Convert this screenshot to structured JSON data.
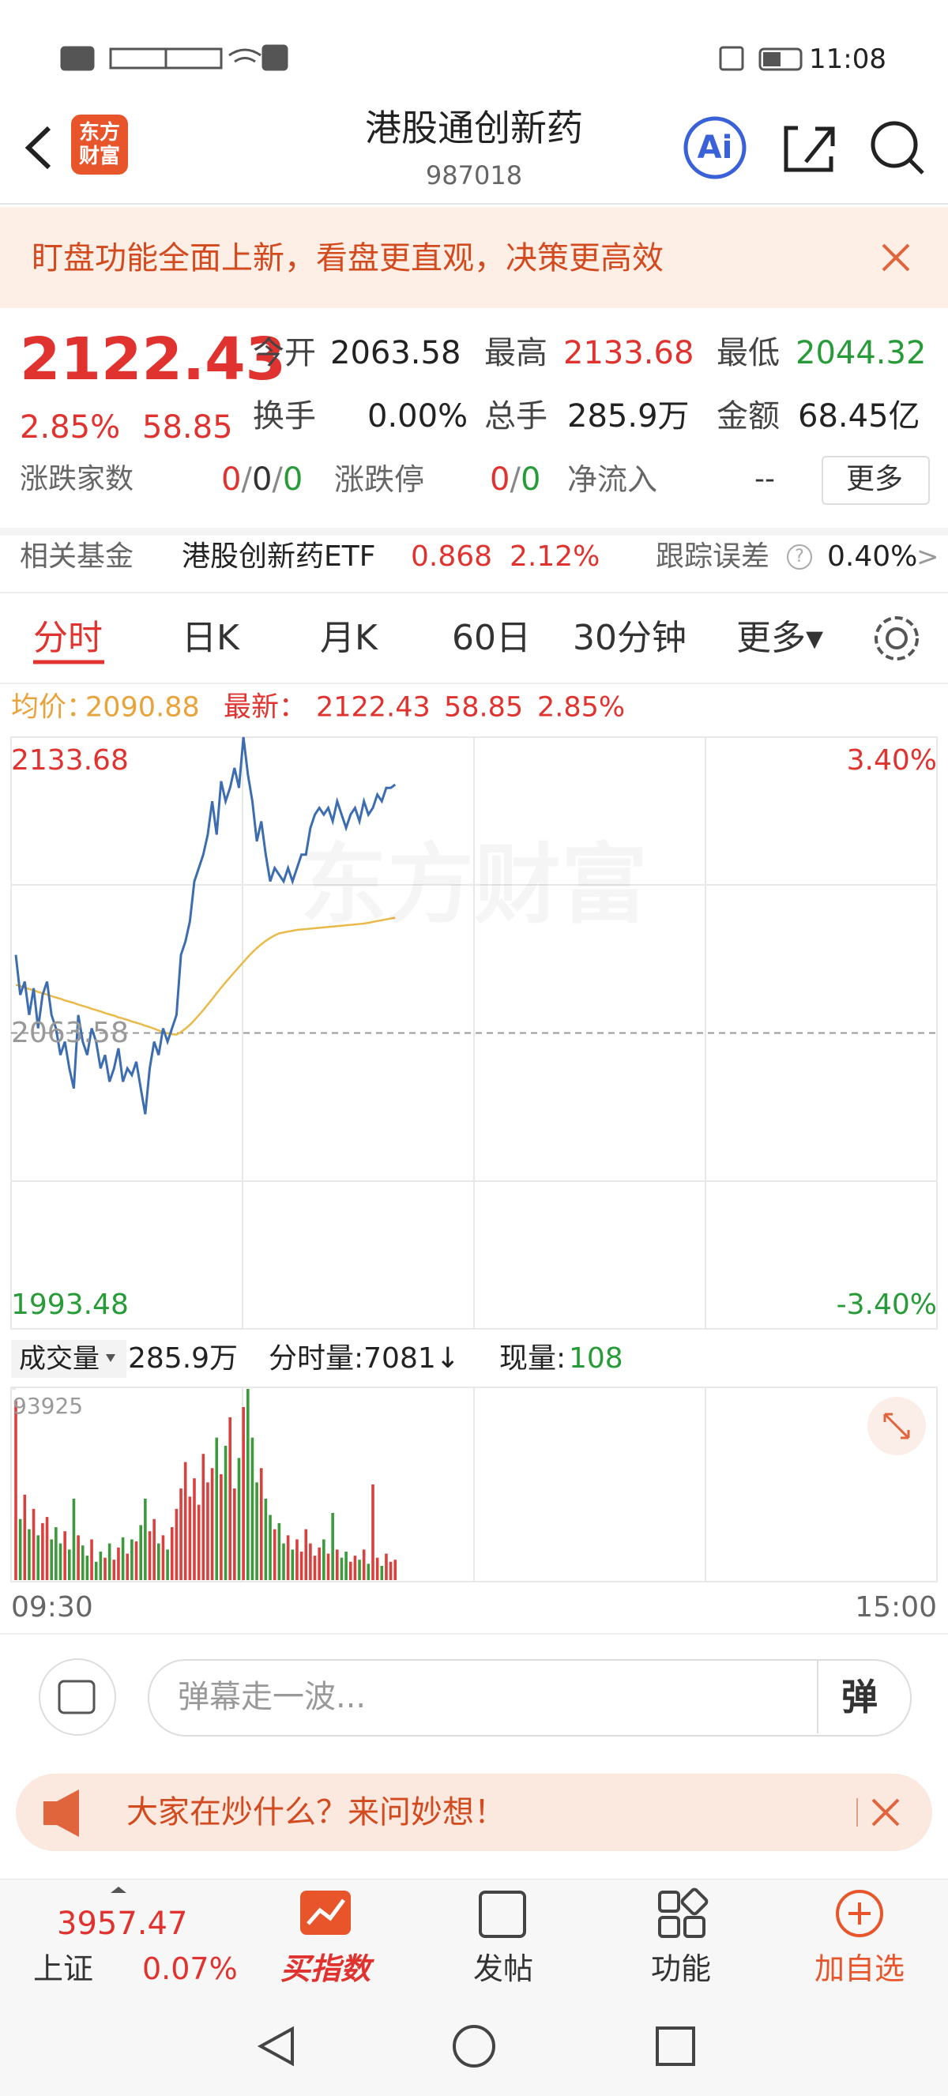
{
  "status_bar": {
    "time": "11:08"
  },
  "header": {
    "logo": "东方财富",
    "title": "港股通创新药",
    "code": "987018",
    "ai": "Ai"
  },
  "banner": {
    "text": "盯盘功能全面上新，看盘更直观，决策更高效"
  },
  "quote": {
    "price": "2122.43",
    "change_pct": "2.85%",
    "change": "58.85",
    "fields": [
      {
        "label": "今开",
        "value": "2063.58"
      },
      {
        "label": "最高",
        "value": "2133.68"
      },
      {
        "label": "最低",
        "value": "2044.32"
      },
      {
        "label": "换手",
        "value": "0.00%"
      },
      {
        "label": "总手",
        "value": "285.9万"
      },
      {
        "label": "金额",
        "value": "68.45亿"
      }
    ],
    "breadth_label": "涨跌家数",
    "breadth": [
      "0",
      "/",
      "0",
      "/",
      "0"
    ],
    "limit_label": "涨跌停",
    "limit": [
      "0",
      "/",
      "0"
    ],
    "net_inflow_label": "净流入",
    "net_inflow": "--",
    "more": "更多"
  },
  "fund": {
    "label": "相关基金",
    "name": "港股创新药ETF",
    "price": "0.868",
    "change_pct": "2.12%",
    "tracking_label": "跟踪误差",
    "help": "?",
    "tracking_error": "0.40%",
    "arrow": ">"
  },
  "tabs": [
    "分时",
    "日K",
    "月K",
    "60日",
    "30分钟",
    "更多▾"
  ],
  "chart_info": {
    "avg_label": "均价：",
    "avg": "2090.88",
    "latest_label": "最新：",
    "latest": "2122.43",
    "change": "58.85",
    "change_pct": "2.85%"
  },
  "chart_data": [
    {
      "type": "line",
      "watermark": "东方财富",
      "ylim": [
        1993.48,
        2133.68
      ],
      "yticks": [
        1993.48,
        2063.58,
        2133.68
      ],
      "y2lim": [
        -3.4,
        3.4
      ],
      "y2ticks": [
        {
          "value": -3.4,
          "label": "-3.40%"
        },
        {
          "value": 3.4,
          "label": "3.40%"
        }
      ],
      "grid": true,
      "up_color": "#e0332f",
      "down_color": "#279b37",
      "flat_color": "#999999",
      "series": [
        {
          "color": "#3c6db0",
          "values": [
            2082.09,
            2072.6,
            2075.76,
            2067.85,
            2074.18,
            2064.69,
            2072.6,
            2075.76,
            2067.85,
            2064.69,
            2058.36,
            2061.52,
            2055.19,
            2050.45,
            2067.85,
            2061.52,
            2058.36,
            2064.69,
            2061.52,
            2055.19,
            2058.36,
            2052.03,
            2055.19,
            2059.94,
            2052.03,
            2055.19,
            2053.61,
            2056.78,
            2050.45,
            2044.32,
            2055.19,
            2061.52,
            2058.36,
            2064.69,
            2061.52,
            2064.69,
            2067.85,
            2082.09,
            2085.26,
            2090.01,
            2099.5,
            2102.66,
            2105.83,
            2110.58,
            2118.49,
            2110.58,
            2123.24,
            2118.49,
            2121.65,
            2126.4,
            2121.65,
            2133.68,
            2124.82,
            2118.49,
            2108.99,
            2113.74,
            2105.83,
            2099.5,
            2102.66,
            2101.08,
            2099.5,
            2102.66,
            2099.5,
            2102.66,
            2105.83,
            2105.83,
            2112.16,
            2115.32,
            2116.91,
            2115.32,
            2116.91,
            2113.74,
            2118.49,
            2115.32,
            2112.16,
            2115.32,
            2116.91,
            2113.74,
            2118.49,
            2115.32,
            2116.91,
            2120.07,
            2118.49,
            2121.65,
            2121.65,
            2122.43
          ]
        },
        {
          "color": "#e9b949",
          "values": [
            2075.0,
            2074.7,
            2074.3,
            2074.0,
            2073.7,
            2073.3,
            2073.0,
            2072.7,
            2072.3,
            2072.0,
            2071.7,
            2071.3,
            2071.0,
            2070.7,
            2070.3,
            2070.0,
            2069.7,
            2069.3,
            2069.0,
            2068.7,
            2068.3,
            2068.0,
            2067.7,
            2067.3,
            2067.0,
            2066.7,
            2066.3,
            2066.0,
            2065.7,
            2065.3,
            2065.0,
            2064.6,
            2064.2,
            2063.8,
            2063.5,
            2063.3,
            2063.2,
            2063.8,
            2064.6,
            2065.5,
            2066.6,
            2067.8,
            2069.0,
            2070.3,
            2071.6,
            2073.0,
            2074.3,
            2075.6,
            2076.8,
            2078.0,
            2079.2,
            2080.4,
            2081.6,
            2082.7,
            2083.7,
            2084.6,
            2085.4,
            2086.1,
            2086.7,
            2087.2,
            2087.4,
            2087.6,
            2087.8,
            2088.0,
            2088.1,
            2088.2,
            2088.3,
            2088.4,
            2088.5,
            2088.6,
            2088.7,
            2088.8,
            2088.9,
            2089.0,
            2089.1,
            2089.2,
            2089.3,
            2089.4,
            2089.5,
            2089.7,
            2089.9,
            2090.1,
            2090.3,
            2090.5,
            2090.7,
            2090.88
          ]
        }
      ]
    },
    {
      "type": "bar",
      "label": "成交量",
      "total": "285.9万",
      "tick_volume": "分时量:7081↓",
      "current_label": "现量:",
      "current": "108",
      "ylim": [
        0,
        93925
      ],
      "yticks": [
        93925
      ],
      "x_labels": [
        "09:30",
        "15:00"
      ],
      "up_color": "#d9413f",
      "down_color": "#3c9a3c",
      "values": [
        88000,
        30000,
        42000,
        25000,
        35000,
        22000,
        28000,
        31000,
        20000,
        26000,
        18000,
        24000,
        15000,
        40000,
        22000,
        17000,
        12000,
        20000,
        9000,
        14000,
        11000,
        18000,
        10000,
        16000,
        21000,
        13000,
        20000,
        19000,
        27000,
        40000,
        24000,
        30000,
        18000,
        22000,
        15000,
        26000,
        35000,
        45000,
        58000,
        41000,
        50000,
        37000,
        62000,
        48000,
        55000,
        70000,
        52000,
        66000,
        80000,
        45000,
        60000,
        85000,
        93925,
        70000,
        48000,
        55000,
        40000,
        32000,
        25000,
        28000,
        18000,
        22000,
        15000,
        20000,
        14000,
        25000,
        18000,
        12000,
        16000,
        20000,
        13000,
        33000,
        15000,
        11000,
        14000,
        9000,
        12000,
        10000,
        15000,
        8000,
        47000,
        11000,
        7000,
        13000,
        9000,
        10000
      ]
    }
  ],
  "comment": {
    "placeholder": "弹幕走一波...",
    "button": "弹"
  },
  "promo": {
    "text": "大家在炒什么？来问妙想！"
  },
  "bottom_nav": {
    "index_value": "3957.47",
    "index_name": "上证",
    "index_change": "0.07%",
    "items": [
      "买指数",
      "发帖",
      "功能",
      "加自选"
    ]
  }
}
